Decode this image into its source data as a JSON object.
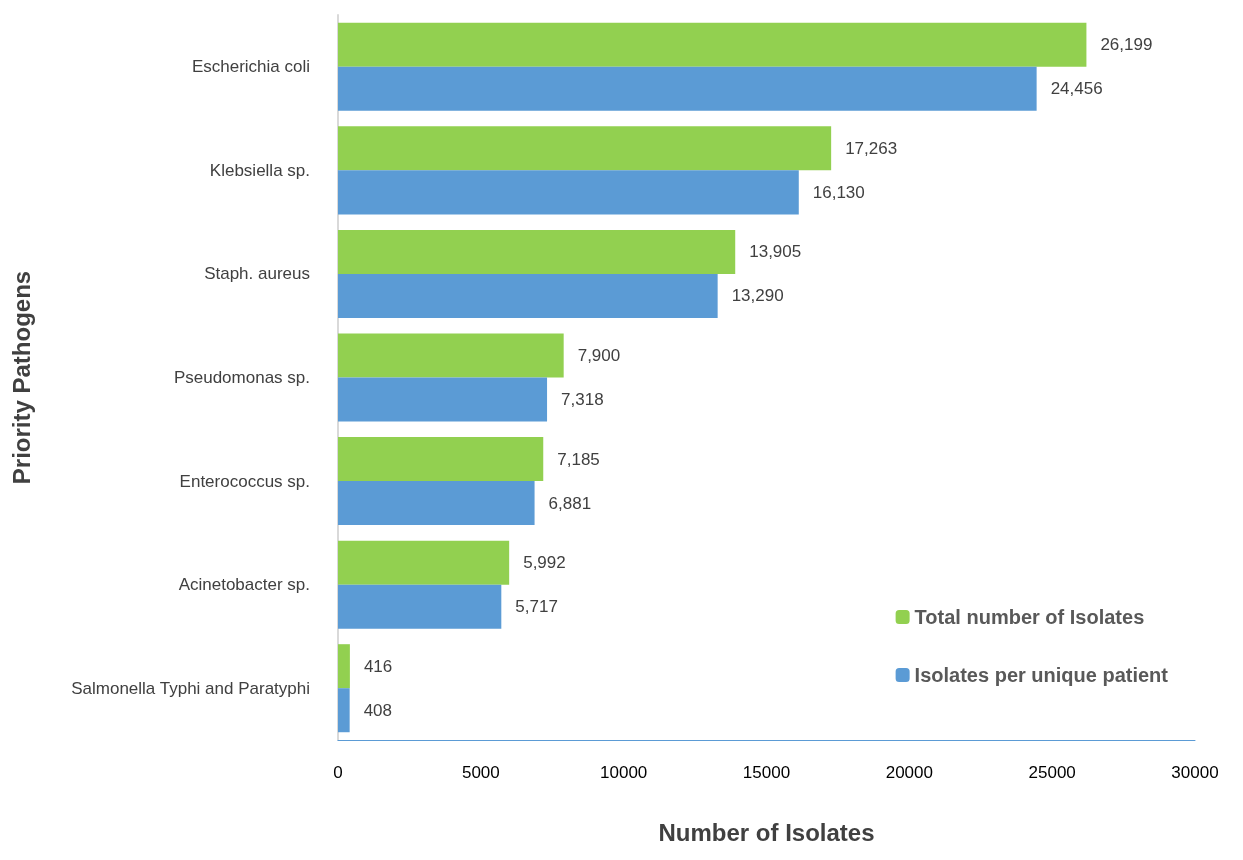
{
  "chart_data": {
    "type": "bar",
    "orientation": "horizontal",
    "xlabel": "Number of Isolates",
    "ylabel": "Priority Pathogens",
    "categories": [
      "Escherichia coli",
      "Klebsiella sp.",
      "Staph. aureus",
      "Pseudomonas sp.",
      "Enterococcus sp.",
      "Acinetobacter sp.",
      "Salmonella Typhi and Paratyphi"
    ],
    "series": [
      {
        "name": "Total number of Isolates",
        "color": "#92d050",
        "values": [
          26199,
          17263,
          13905,
          7900,
          7185,
          5992,
          416
        ],
        "value_labels": [
          "26,199",
          "17,263",
          "13,905",
          "7,900",
          "7,185",
          "5,992",
          "416"
        ]
      },
      {
        "name": "Isolates per unique patient",
        "color": "#5b9bd5",
        "values": [
          24456,
          16130,
          13290,
          7318,
          6881,
          5717,
          408
        ],
        "value_labels": [
          "24,456",
          "16,130",
          "13,290",
          "7,318",
          "6,881",
          "5,717",
          "408"
        ]
      }
    ],
    "xlim": [
      0,
      30000
    ],
    "xticks": [
      0,
      5000,
      10000,
      15000,
      20000,
      25000,
      30000
    ],
    "grid": false,
    "legend": "bottom right"
  }
}
